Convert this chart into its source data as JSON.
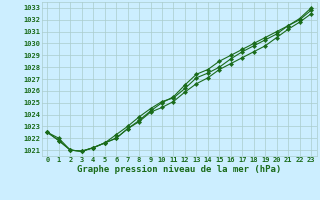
{
  "title": "Graphe pression niveau de la mer (hPa)",
  "background_color": "#cceeff",
  "grid_color": "#aacccc",
  "line_color": "#1a6b1a",
  "marker_color": "#1a6b1a",
  "x_values": [
    0,
    1,
    2,
    3,
    4,
    5,
    6,
    7,
    8,
    9,
    10,
    11,
    12,
    13,
    14,
    15,
    16,
    17,
    18,
    19,
    20,
    21,
    22,
    23
  ],
  "line1": [
    1022.5,
    1021.8,
    1021.0,
    1020.9,
    1021.2,
    1021.6,
    1022.3,
    1023.0,
    1023.8,
    1024.5,
    1025.1,
    1025.4,
    1026.2,
    1027.1,
    1027.5,
    1028.0,
    1028.7,
    1029.3,
    1029.8,
    1030.3,
    1030.8,
    1031.5,
    1032.1,
    1033.0
  ],
  "line2": [
    1022.5,
    1021.8,
    1021.0,
    1020.9,
    1021.2,
    1021.6,
    1022.0,
    1022.8,
    1023.4,
    1024.2,
    1024.6,
    1025.1,
    1025.9,
    1026.6,
    1027.1,
    1027.8,
    1028.3,
    1028.8,
    1029.3,
    1029.8,
    1030.5,
    1031.2,
    1031.8,
    1032.5
  ],
  "line3": [
    1022.5,
    1022.0,
    1021.0,
    1020.9,
    1021.2,
    1021.6,
    1022.0,
    1022.8,
    1023.5,
    1024.3,
    1025.0,
    1025.5,
    1026.5,
    1027.4,
    1027.8,
    1028.5,
    1029.0,
    1029.5,
    1030.0,
    1030.5,
    1031.0,
    1031.5,
    1032.0,
    1032.8
  ],
  "ylim": [
    1020.5,
    1033.5
  ],
  "yticks": [
    1021,
    1022,
    1023,
    1024,
    1025,
    1026,
    1027,
    1028,
    1029,
    1030,
    1031,
    1032,
    1033
  ],
  "xticks": [
    0,
    1,
    2,
    3,
    4,
    5,
    6,
    7,
    8,
    9,
    10,
    11,
    12,
    13,
    14,
    15,
    16,
    17,
    18,
    19,
    20,
    21,
    22,
    23
  ],
  "title_fontsize": 6.5,
  "tick_fontsize": 5.0,
  "marker_size": 2.2,
  "line_width": 0.8
}
